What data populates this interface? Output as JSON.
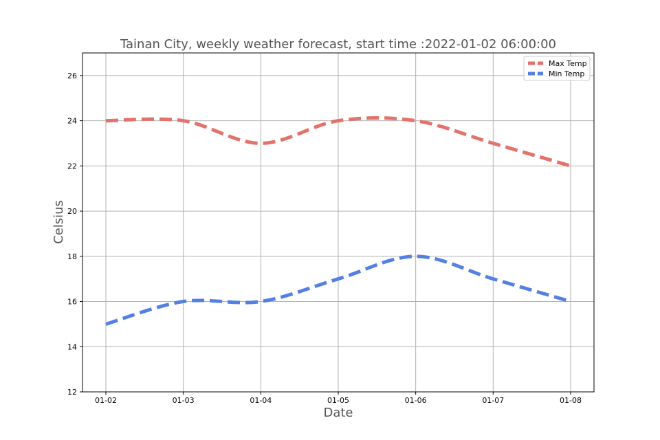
{
  "chart_data": {
    "type": "line",
    "title": "Tainan City, weekly weather forecast, start time :2022-01-02 06:00:00",
    "xlabel": "Date",
    "ylabel": "Celsius",
    "categories": [
      "01-02",
      "01-03",
      "01-04",
      "01-05",
      "01-06",
      "01-07",
      "01-08"
    ],
    "ylim": [
      12,
      27
    ],
    "yticks": [
      12,
      14,
      16,
      18,
      20,
      22,
      24,
      26
    ],
    "grid": true,
    "legend_position": "top-right",
    "series": [
      {
        "name": "Max Temp",
        "color": "#e3726b",
        "values": [
          24,
          24,
          23,
          24,
          24,
          23,
          22
        ]
      },
      {
        "name": "Min Temp",
        "color": "#5580e3",
        "values": [
          15,
          16,
          16,
          17,
          18,
          17,
          16
        ]
      }
    ]
  }
}
